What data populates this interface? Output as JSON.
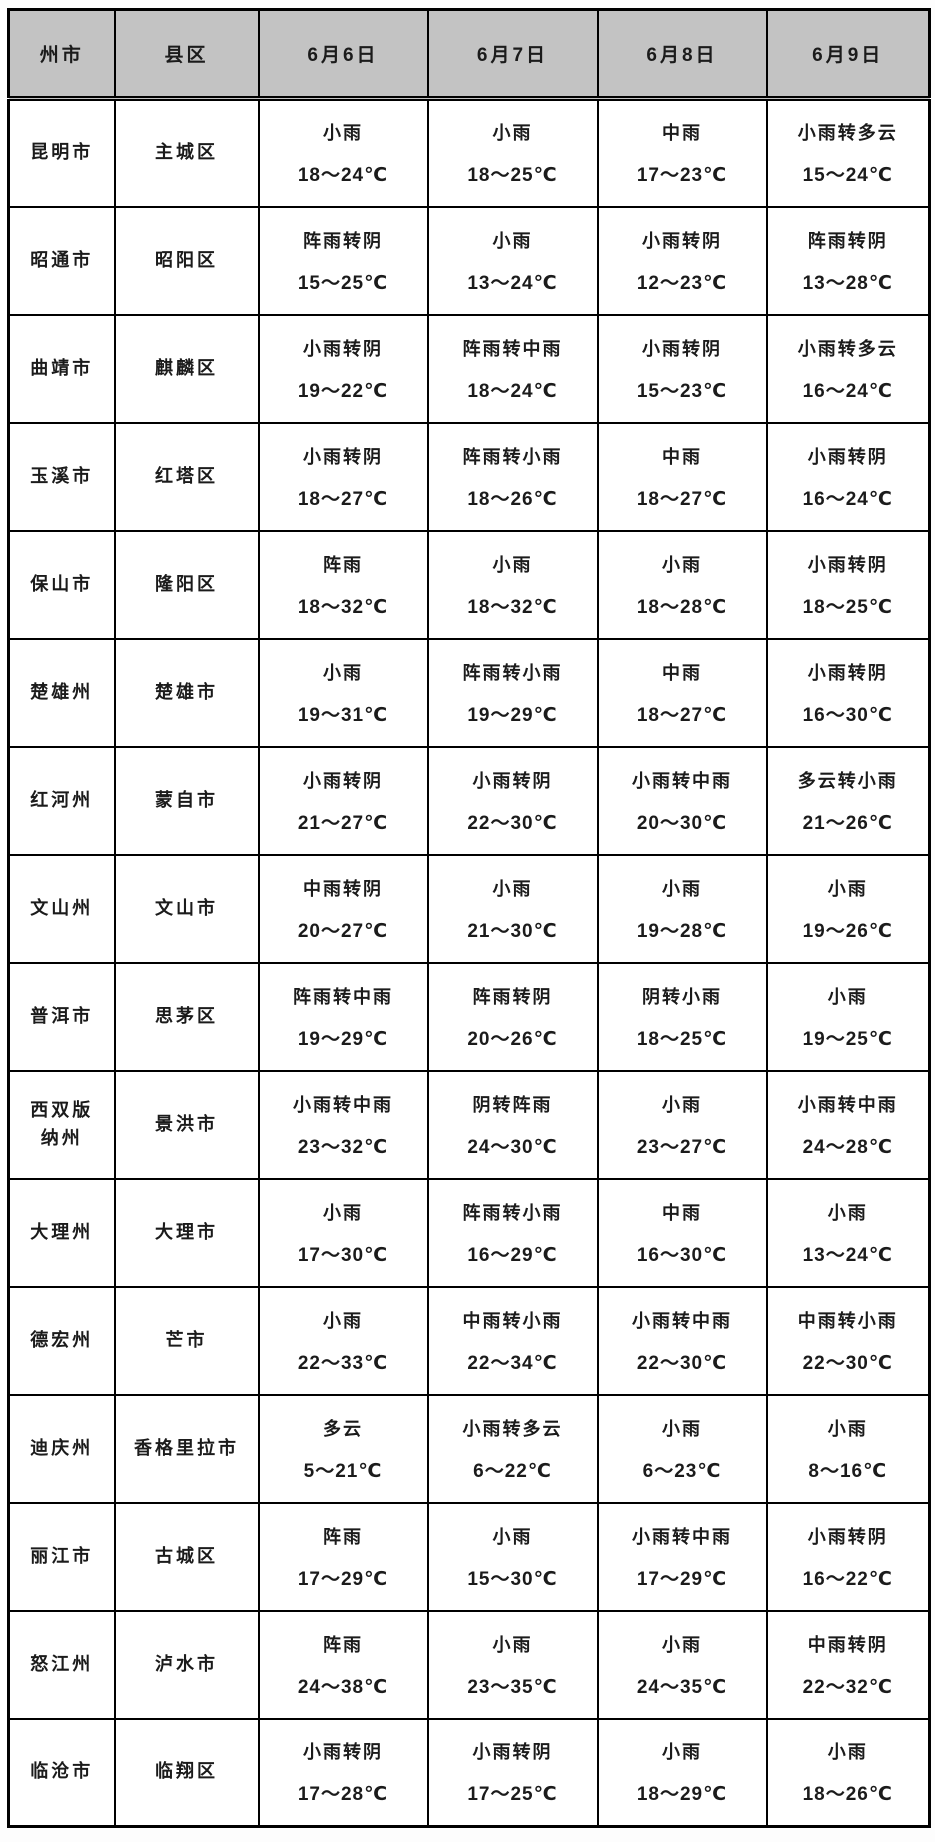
{
  "colors": {
    "header_bg": "#c3c3c3",
    "border": "#000000",
    "text": "#1b1b1b",
    "page_bg": "#fdfdfd"
  },
  "table": {
    "columns": [
      "州市",
      "县区",
      "6月6日",
      "6月7日",
      "6月8日",
      "6月9日"
    ],
    "rows": [
      {
        "prefecture": "昆明市",
        "county": "主城区",
        "forecasts": [
          {
            "weather": "小雨",
            "temp": "18～24℃"
          },
          {
            "weather": "小雨",
            "temp": "18～25℃"
          },
          {
            "weather": "中雨",
            "temp": "17～23℃"
          },
          {
            "weather": "小雨转多云",
            "temp": "15～24℃"
          }
        ]
      },
      {
        "prefecture": "昭通市",
        "county": "昭阳区",
        "forecasts": [
          {
            "weather": "阵雨转阴",
            "temp": "15～25℃"
          },
          {
            "weather": "小雨",
            "temp": "13～24℃"
          },
          {
            "weather": "小雨转阴",
            "temp": "12～23℃"
          },
          {
            "weather": "阵雨转阴",
            "temp": "13～28℃"
          }
        ]
      },
      {
        "prefecture": "曲靖市",
        "county": "麒麟区",
        "forecasts": [
          {
            "weather": "小雨转阴",
            "temp": "19～22℃"
          },
          {
            "weather": "阵雨转中雨",
            "temp": "18～24℃"
          },
          {
            "weather": "小雨转阴",
            "temp": "15～23℃"
          },
          {
            "weather": "小雨转多云",
            "temp": "16～24℃"
          }
        ]
      },
      {
        "prefecture": "玉溪市",
        "county": "红塔区",
        "forecasts": [
          {
            "weather": "小雨转阴",
            "temp": "18～27℃"
          },
          {
            "weather": "阵雨转小雨",
            "temp": "18～26℃"
          },
          {
            "weather": "中雨",
            "temp": "18～27℃"
          },
          {
            "weather": "小雨转阴",
            "temp": "16～24℃"
          }
        ]
      },
      {
        "prefecture": "保山市",
        "county": "隆阳区",
        "forecasts": [
          {
            "weather": "阵雨",
            "temp": "18～32℃"
          },
          {
            "weather": "小雨",
            "temp": "18～32℃"
          },
          {
            "weather": "小雨",
            "temp": "18～28℃"
          },
          {
            "weather": "小雨转阴",
            "temp": "18～25℃"
          }
        ]
      },
      {
        "prefecture": "楚雄州",
        "county": "楚雄市",
        "forecasts": [
          {
            "weather": "小雨",
            "temp": "19～31℃"
          },
          {
            "weather": "阵雨转小雨",
            "temp": "19～29℃"
          },
          {
            "weather": "中雨",
            "temp": "18～27℃"
          },
          {
            "weather": "小雨转阴",
            "temp": "16～30℃"
          }
        ]
      },
      {
        "prefecture": "红河州",
        "county": "蒙自市",
        "forecasts": [
          {
            "weather": "小雨转阴",
            "temp": "21～27℃"
          },
          {
            "weather": "小雨转阴",
            "temp": "22～30℃"
          },
          {
            "weather": "小雨转中雨",
            "temp": "20～30℃"
          },
          {
            "weather": "多云转小雨",
            "temp": "21～26℃"
          }
        ]
      },
      {
        "prefecture": "文山州",
        "county": "文山市",
        "forecasts": [
          {
            "weather": "中雨转阴",
            "temp": "20～27℃"
          },
          {
            "weather": "小雨",
            "temp": "21～30℃"
          },
          {
            "weather": "小雨",
            "temp": "19～28℃"
          },
          {
            "weather": "小雨",
            "temp": "19～26℃"
          }
        ]
      },
      {
        "prefecture": "普洱市",
        "county": "思茅区",
        "forecasts": [
          {
            "weather": "阵雨转中雨",
            "temp": "19～29℃"
          },
          {
            "weather": "阵雨转阴",
            "temp": "20～26℃"
          },
          {
            "weather": "阴转小雨",
            "temp": "18～25℃"
          },
          {
            "weather": "小雨",
            "temp": "19～25℃"
          }
        ]
      },
      {
        "prefecture": "西双版纳州",
        "county": "景洪市",
        "forecasts": [
          {
            "weather": "小雨转中雨",
            "temp": "23～32℃"
          },
          {
            "weather": "阴转阵雨",
            "temp": "24～30℃"
          },
          {
            "weather": "小雨",
            "temp": "23～27℃"
          },
          {
            "weather": "小雨转中雨",
            "temp": "24～28℃"
          }
        ]
      },
      {
        "prefecture": "大理州",
        "county": "大理市",
        "forecasts": [
          {
            "weather": "小雨",
            "temp": "17～30℃"
          },
          {
            "weather": "阵雨转小雨",
            "temp": "16～29℃"
          },
          {
            "weather": "中雨",
            "temp": "16～30℃"
          },
          {
            "weather": "小雨",
            "temp": "13～24℃"
          }
        ]
      },
      {
        "prefecture": "德宏州",
        "county": "芒市",
        "forecasts": [
          {
            "weather": "小雨",
            "temp": "22～33℃"
          },
          {
            "weather": "中雨转小雨",
            "temp": "22～34℃"
          },
          {
            "weather": "小雨转中雨",
            "temp": "22～30℃"
          },
          {
            "weather": "中雨转小雨",
            "temp": "22～30℃"
          }
        ]
      },
      {
        "prefecture": "迪庆州",
        "county": "香格里拉市",
        "forecasts": [
          {
            "weather": "多云",
            "temp": "5～21℃"
          },
          {
            "weather": "小雨转多云",
            "temp": "6～22℃"
          },
          {
            "weather": "小雨",
            "temp": "6～23℃"
          },
          {
            "weather": "小雨",
            "temp": "8～16℃"
          }
        ]
      },
      {
        "prefecture": "丽江市",
        "county": "古城区",
        "forecasts": [
          {
            "weather": "阵雨",
            "temp": "17～29℃"
          },
          {
            "weather": "小雨",
            "temp": "15～30℃"
          },
          {
            "weather": "小雨转中雨",
            "temp": "17～29℃"
          },
          {
            "weather": "小雨转阴",
            "temp": "16～22℃"
          }
        ]
      },
      {
        "prefecture": "怒江州",
        "county": "泸水市",
        "forecasts": [
          {
            "weather": "阵雨",
            "temp": "24～38℃"
          },
          {
            "weather": "小雨",
            "temp": "23～35℃"
          },
          {
            "weather": "小雨",
            "temp": "24～35℃"
          },
          {
            "weather": "中雨转阴",
            "temp": "22～32℃"
          }
        ]
      },
      {
        "prefecture": "临沧市",
        "county": "临翔区",
        "forecasts": [
          {
            "weather": "小雨转阴",
            "temp": "17～28℃"
          },
          {
            "weather": "小雨转阴",
            "temp": "17～25℃"
          },
          {
            "weather": "小雨",
            "temp": "18～29℃"
          },
          {
            "weather": "小雨",
            "temp": "18～26℃"
          }
        ]
      }
    ]
  }
}
